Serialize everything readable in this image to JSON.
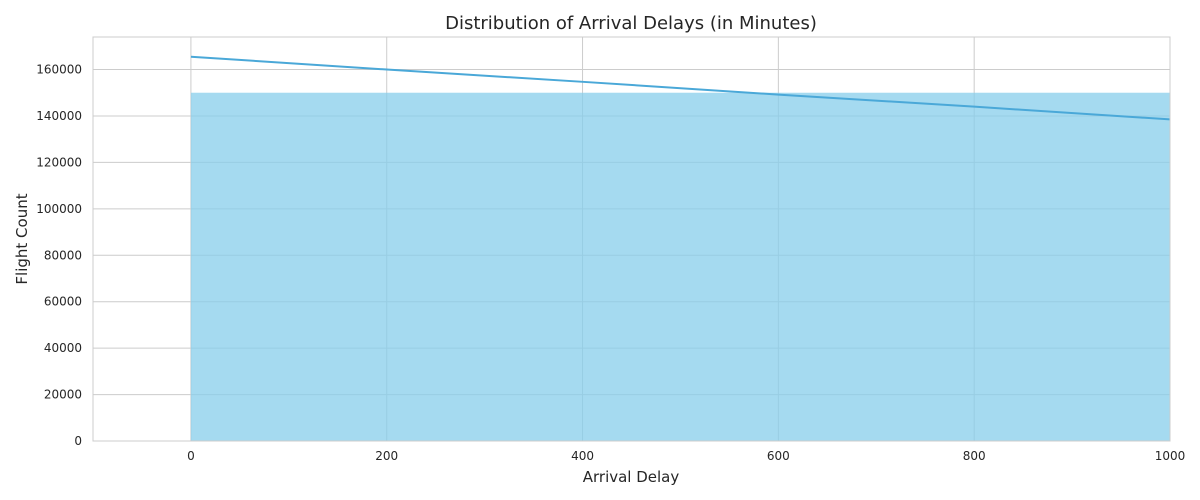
{
  "chart_data": {
    "type": "bar",
    "title": "Distribution of Arrival Delays (in Minutes)",
    "xlabel": "Arrival Delay",
    "ylabel": "Flight Count",
    "xlim": [
      -100,
      1000
    ],
    "ylim": [
      0,
      174000
    ],
    "x_ticks": [
      0,
      200,
      400,
      600,
      800,
      1000
    ],
    "y_ticks": [
      0,
      20000,
      40000,
      60000,
      80000,
      100000,
      120000,
      140000,
      160000
    ],
    "bins": [
      {
        "x_start": 0,
        "x_end": 1000,
        "count": 150000
      }
    ],
    "kde_line": {
      "x": [
        0,
        200,
        400,
        600,
        800,
        1000
      ],
      "y": [
        165500,
        160000,
        154700,
        149200,
        144000,
        138500
      ]
    },
    "grid": true,
    "colors": {
      "bar_fill": "#87CEEB",
      "line": "#4aa8d8",
      "grid": "#cccccc",
      "axes": "#cccccc",
      "text": "#262626"
    }
  }
}
